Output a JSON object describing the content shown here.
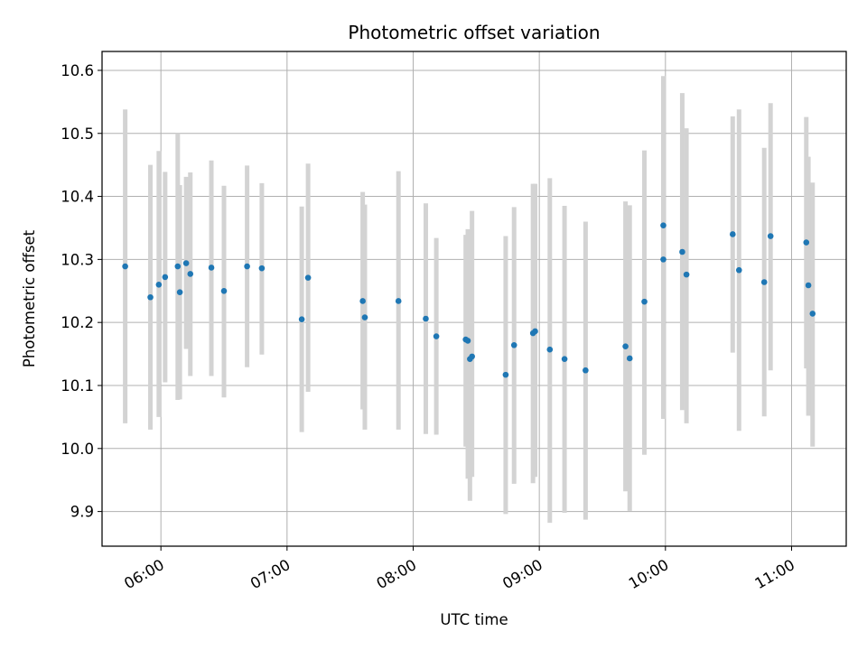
{
  "chart_data": {
    "type": "scatter",
    "title": "Photometric offset variation",
    "xlabel": "UTC time",
    "ylabel": "Photometric offset",
    "xlim": [
      "05:32",
      "11:26"
    ],
    "ylim": [
      9.845,
      10.63
    ],
    "x_ticks": [
      "06:00",
      "07:00",
      "08:00",
      "09:00",
      "10:00",
      "11:00"
    ],
    "y_ticks": [
      "9.9",
      "10.0",
      "10.1",
      "10.2",
      "10.3",
      "10.4",
      "10.5",
      "10.6"
    ],
    "grid": true,
    "colors": {
      "points": "#1f77b4",
      "error_bars": "#d3d3d3",
      "grid": "#b0b0b0"
    },
    "series": [
      {
        "marker": "point",
        "error_bars": "vertical",
        "x": [
          "05:43",
          "05:55",
          "05:59",
          "06:02",
          "06:08",
          "06:09",
          "06:12",
          "06:14",
          "06:24",
          "06:30",
          "06:41",
          "06:48",
          "07:07",
          "07:10",
          "07:36",
          "07:37",
          "07:53",
          "08:06",
          "08:11",
          "08:25",
          "08:26",
          "08:27",
          "08:28",
          "08:44",
          "08:48",
          "08:57",
          "08:58",
          "09:05",
          "09:12",
          "09:22",
          "09:41",
          "09:43",
          "09:50",
          "09:59",
          "09:59",
          "10:08",
          "10:10",
          "10:32",
          "10:35",
          "10:47",
          "10:50",
          "11:07",
          "11:08",
          "11:10"
        ],
        "y": [
          10.289,
          10.24,
          10.26,
          10.272,
          10.289,
          10.248,
          10.294,
          10.277,
          10.287,
          10.25,
          10.289,
          10.286,
          10.205,
          10.271,
          10.234,
          10.208,
          10.234,
          10.206,
          10.178,
          10.173,
          10.171,
          10.142,
          10.146,
          10.117,
          10.164,
          10.183,
          10.186,
          10.157,
          10.142,
          10.124,
          10.162,
          10.143,
          10.233,
          10.354,
          10.3,
          10.312,
          10.276,
          10.34,
          10.283,
          10.264,
          10.337,
          10.327,
          10.259,
          10.214
        ],
        "err_low": [
          10.04,
          10.03,
          10.05,
          10.105,
          10.077,
          10.078,
          10.158,
          10.115,
          10.115,
          10.081,
          10.129,
          10.149,
          10.026,
          10.09,
          10.062,
          10.03,
          10.03,
          10.023,
          10.022,
          10.003,
          9.952,
          9.917,
          9.955,
          9.896,
          9.944,
          9.945,
          9.955,
          9.882,
          9.898,
          9.887,
          9.932,
          9.901,
          9.99,
          10.118,
          10.047,
          10.061,
          10.04,
          10.152,
          10.028,
          10.051,
          10.124,
          10.127,
          10.052,
          10.003
        ],
        "err_high": [
          10.538,
          10.45,
          10.472,
          10.439,
          10.5,
          10.418,
          10.431,
          10.438,
          10.457,
          10.417,
          10.449,
          10.421,
          10.384,
          10.452,
          10.407,
          10.387,
          10.44,
          10.389,
          10.334,
          10.339,
          10.348,
          10.339,
          10.377,
          10.337,
          10.383,
          10.42,
          10.42,
          10.429,
          10.385,
          10.36,
          10.392,
          10.386,
          10.473,
          10.591,
          10.553,
          10.564,
          10.508,
          10.527,
          10.538,
          10.477,
          10.548,
          10.526,
          10.463,
          10.422
        ]
      }
    ]
  }
}
